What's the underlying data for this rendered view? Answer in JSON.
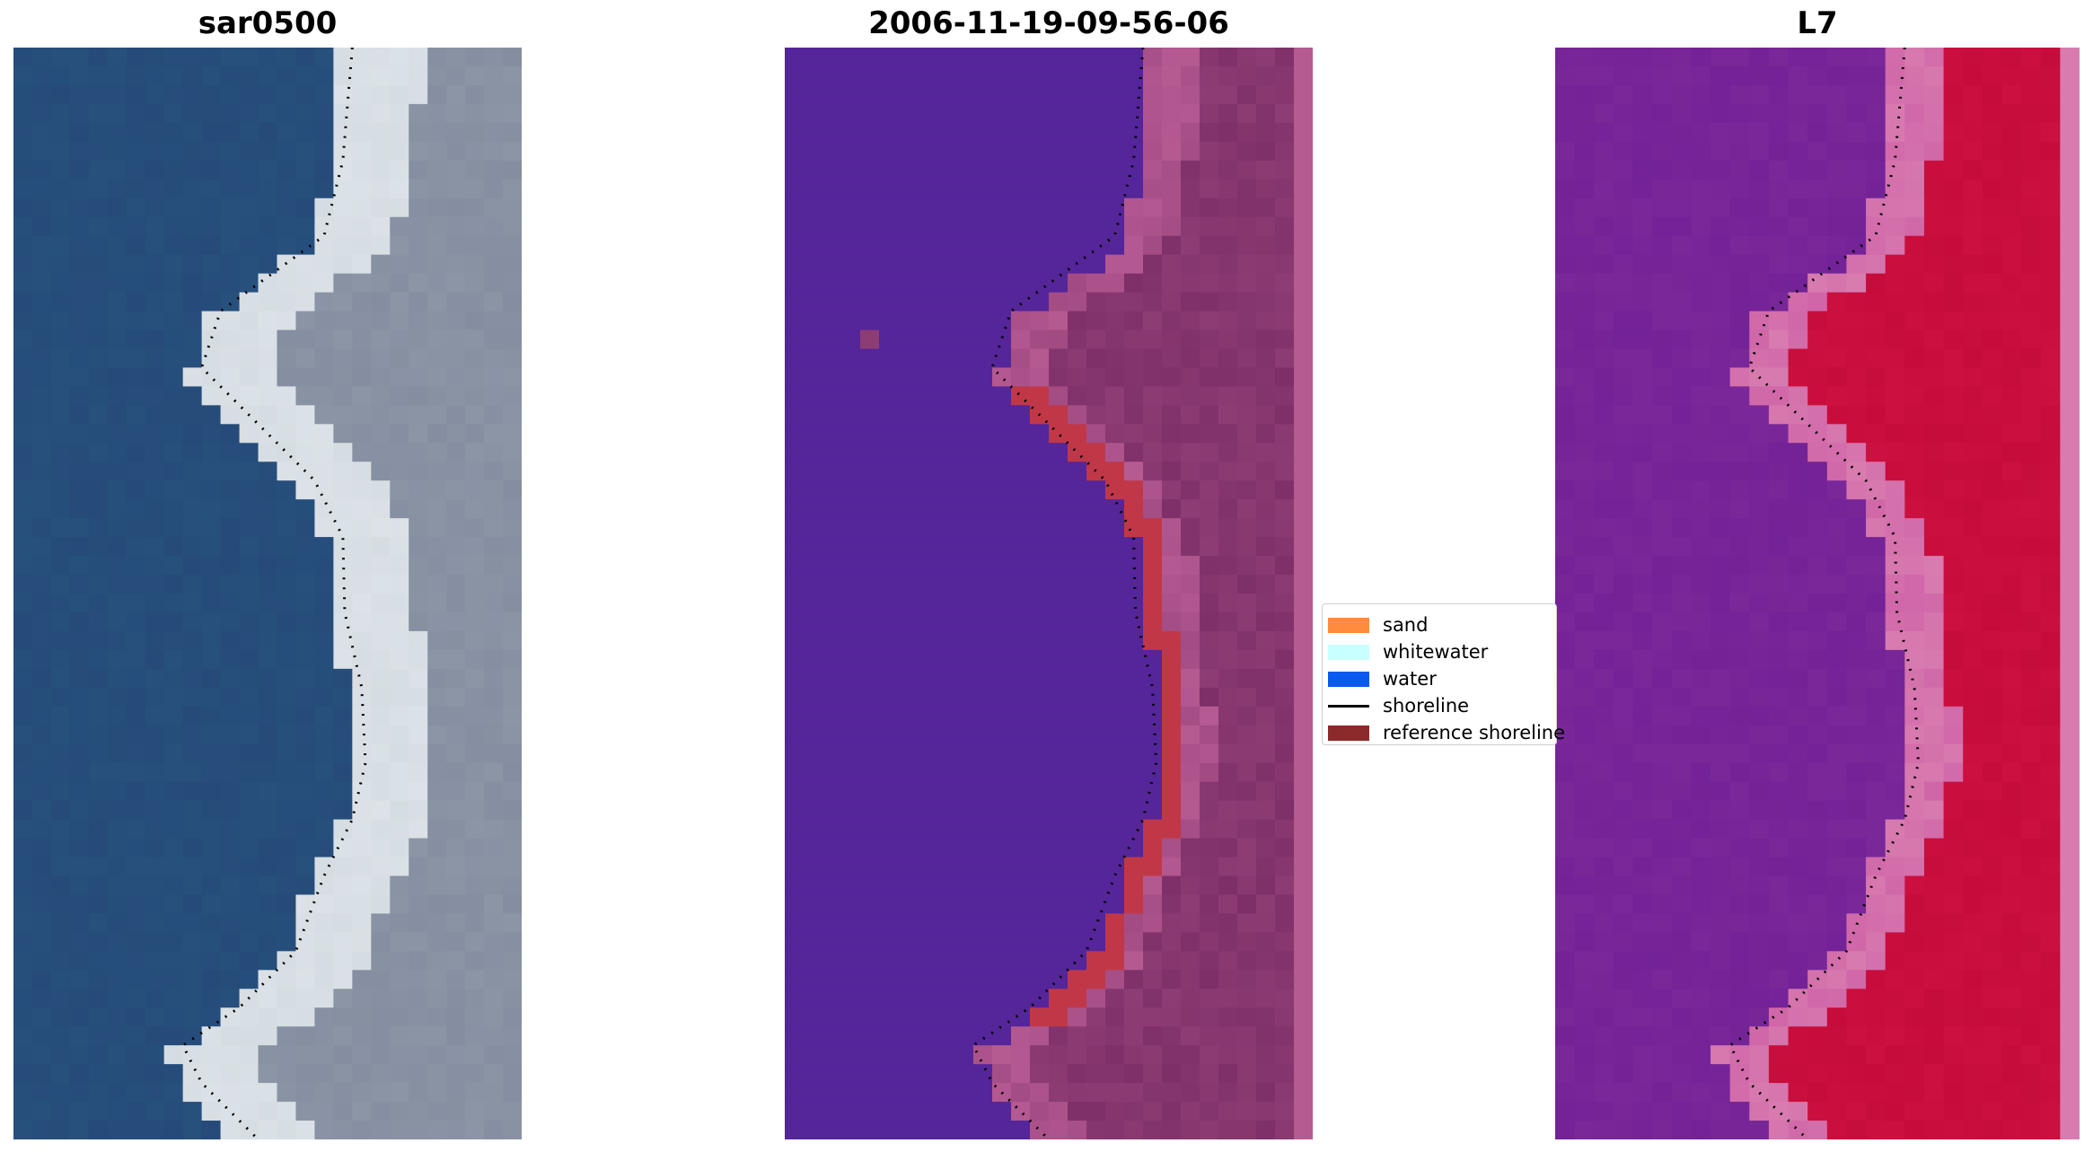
{
  "titles": {
    "left": "sar0500",
    "middle": "2006-11-19-09-56-06",
    "right": "L7"
  },
  "legend": {
    "items": [
      {
        "label": "sand",
        "color": "#ff8c3c",
        "kind": "patch"
      },
      {
        "label": "whitewater",
        "color": "#c8ffff",
        "kind": "patch"
      },
      {
        "label": "water",
        "color": "#0a5aef",
        "kind": "patch"
      },
      {
        "label": "shoreline",
        "color": "#000000",
        "kind": "line"
      },
      {
        "label": "reference shoreline",
        "color": "#8b2a2a",
        "kind": "patch"
      }
    ]
  },
  "colors": {
    "rgb_water": "#264b7a",
    "rgb_land": "#8c95a6",
    "rgb_beach": "#d6dde2",
    "class_water": "#55259a",
    "class_land": "#8e3c74",
    "class_land_dark": "#7a2c64",
    "class_edge": "#b65a92",
    "class_reference": "#c03848",
    "index_water": "#7a2899",
    "index_land": "#c60c3a",
    "index_edge": "#d87cb0"
  }
}
